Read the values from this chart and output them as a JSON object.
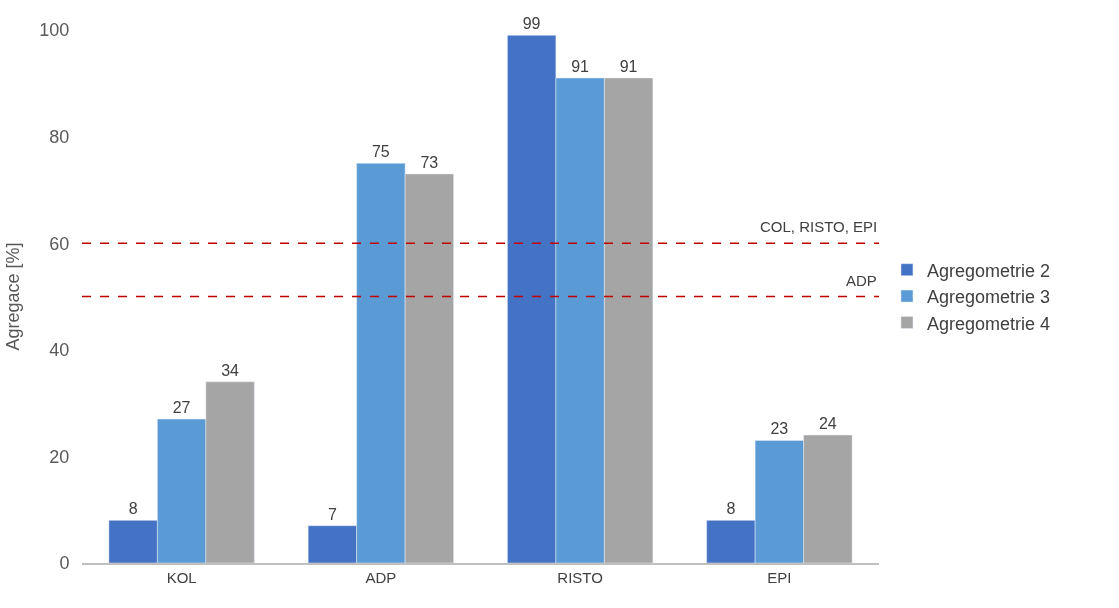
{
  "chart_data": {
    "type": "bar",
    "ylabel": "Agregace [%]",
    "categories": [
      "KOL",
      "ADP",
      "RISTO",
      "EPI"
    ],
    "series": [
      {
        "name": "Agregometrie 2",
        "color": "#4472c4",
        "values": [
          8,
          7,
          99,
          8
        ]
      },
      {
        "name": "Agregometrie 3",
        "color": "#5b9bd5",
        "values": [
          27,
          75,
          91,
          23
        ]
      },
      {
        "name": "Agregometrie 4",
        "color": "#a5a5a5",
        "values": [
          34,
          73,
          91,
          24
        ]
      }
    ],
    "ylim": [
      0,
      100
    ],
    "yticks": [
      0,
      20,
      40,
      60,
      80,
      100
    ],
    "legend": "right",
    "data_labels": true,
    "ref_lines": [
      {
        "axis": "y",
        "value": 60,
        "label": "COL, RISTO, EPI",
        "color": "#c00000",
        "line_style": "dashed"
      },
      {
        "axis": "y",
        "value": 50,
        "label": "ADP",
        "color": "#c00000",
        "line_style": "dashed"
      }
    ]
  }
}
